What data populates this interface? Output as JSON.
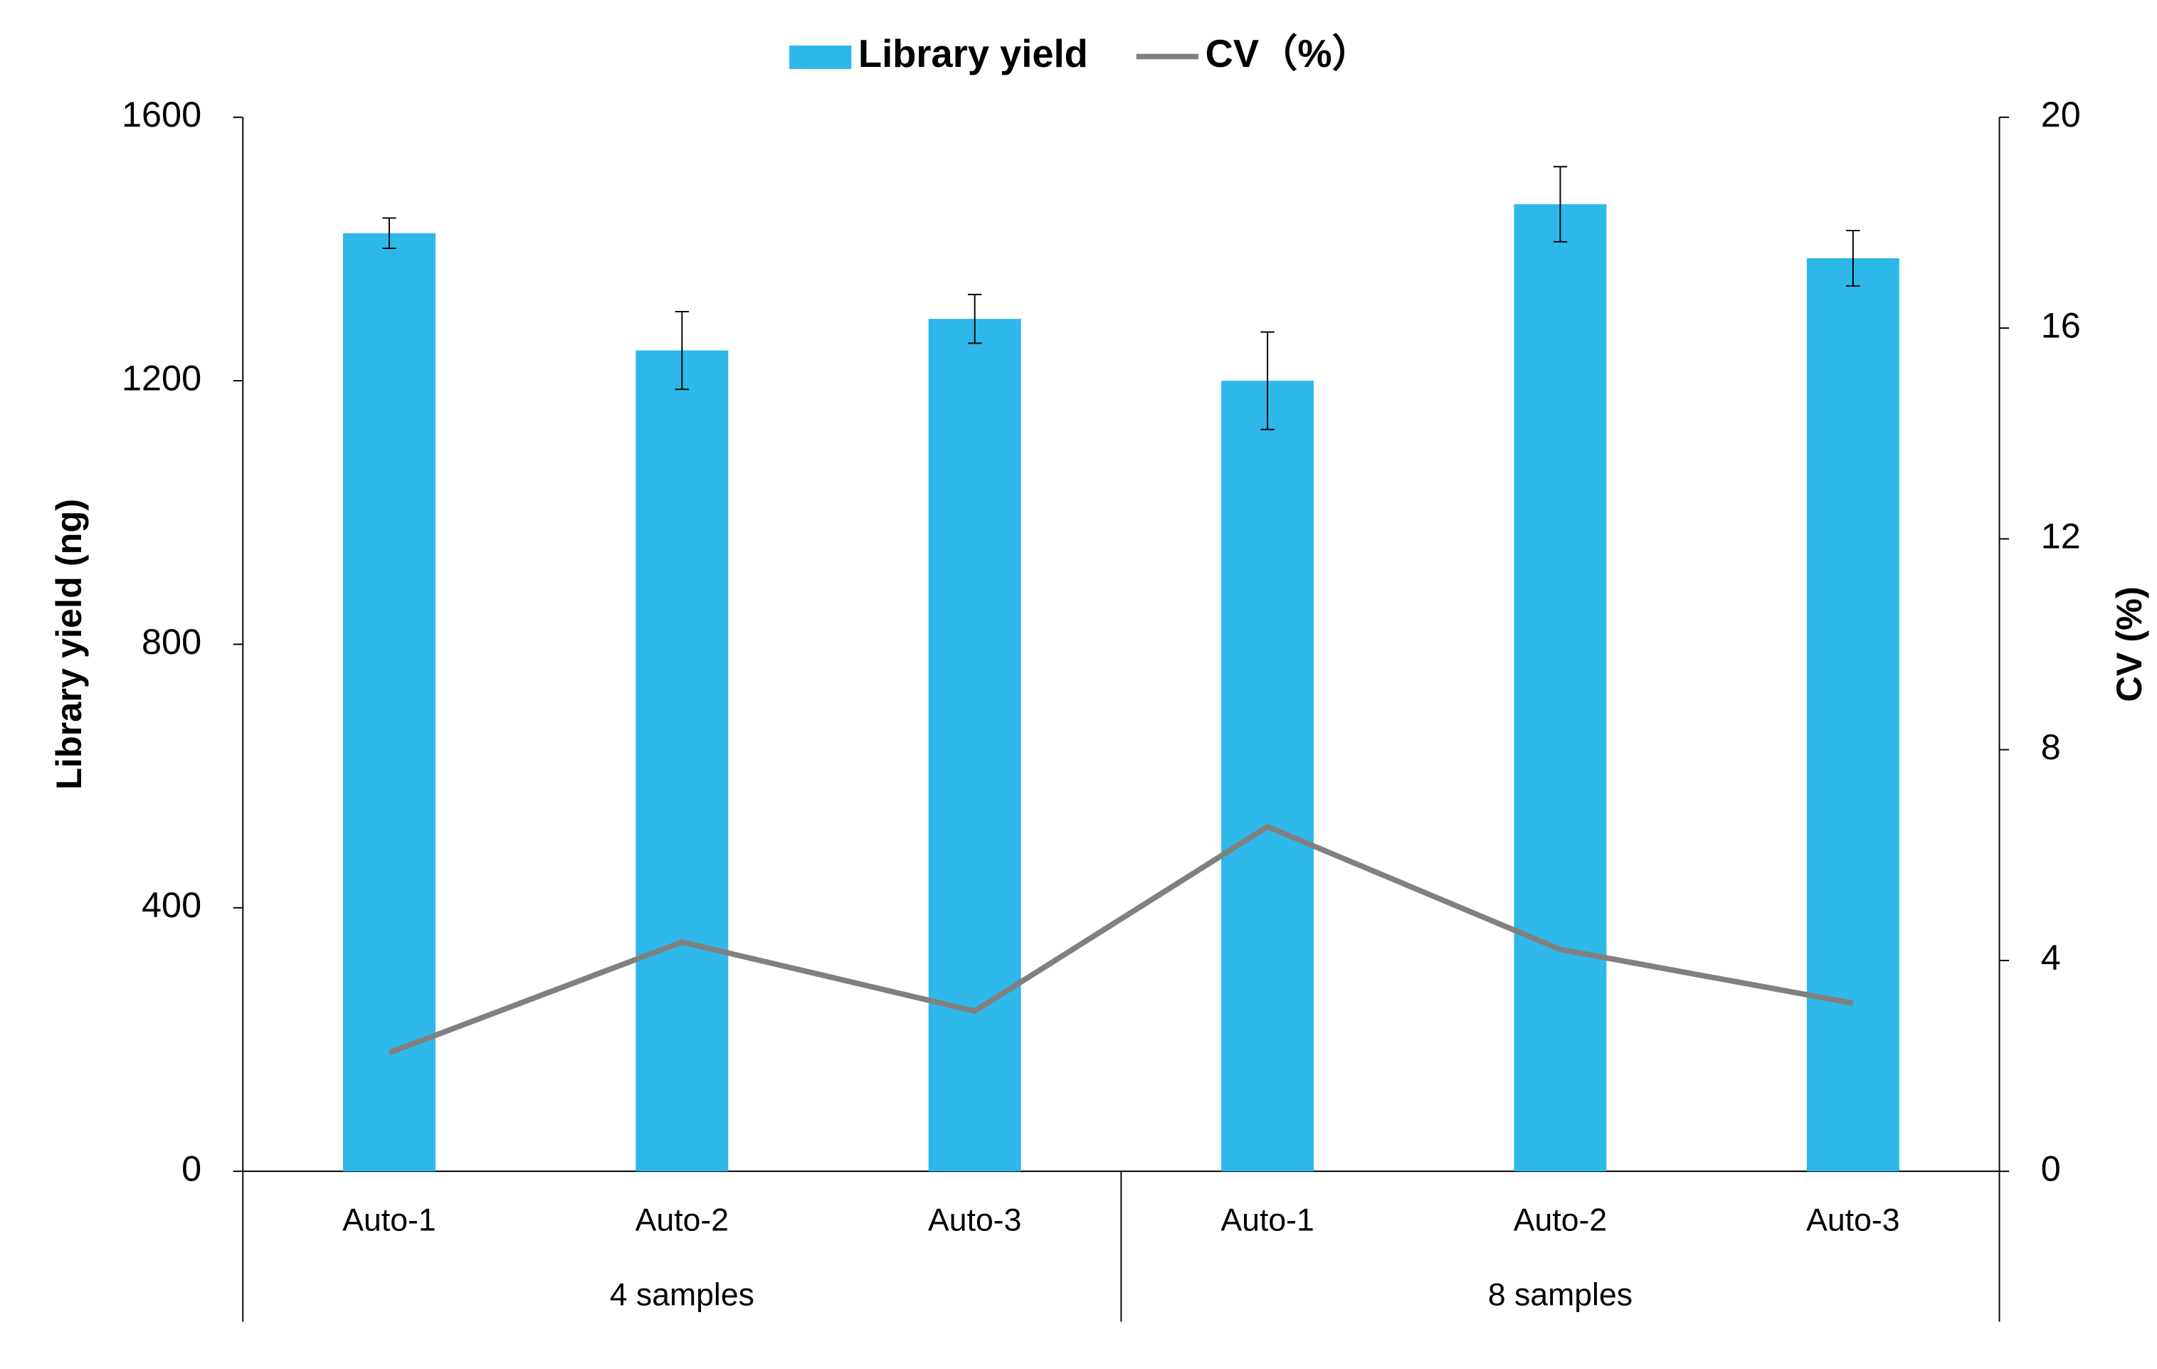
{
  "chart_data": {
    "type": "bar",
    "groups": [
      {
        "label": "4 samples",
        "categories": [
          "Auto-1",
          "Auto-2",
          "Auto-3"
        ]
      },
      {
        "label": "8 samples",
        "categories": [
          "Auto-1",
          "Auto-2",
          "Auto-3"
        ]
      }
    ],
    "y_label": "Library yield (ng)",
    "y2_label": "CV (%)",
    "ylim": [
      0,
      1600
    ],
    "yticks": [
      0,
      400,
      800,
      1200,
      1600
    ],
    "y2lim": [
      0,
      20
    ],
    "y2ticks": [
      0,
      4,
      8,
      12,
      16,
      20
    ],
    "legend": "top",
    "series": [
      {
        "name": "Library yield",
        "type": "bar",
        "color": "#2eb8e9",
        "values": [
          1424,
          1246,
          1294,
          1200,
          1468,
          1386
        ],
        "errors": [
          23,
          59,
          37,
          74,
          57,
          42
        ]
      },
      {
        "name": "CV（%）",
        "type": "line",
        "axis": "y2",
        "color": "#808080",
        "values": [
          2.25,
          4.35,
          3.04,
          6.54,
          4.21,
          3.19
        ]
      }
    ]
  }
}
